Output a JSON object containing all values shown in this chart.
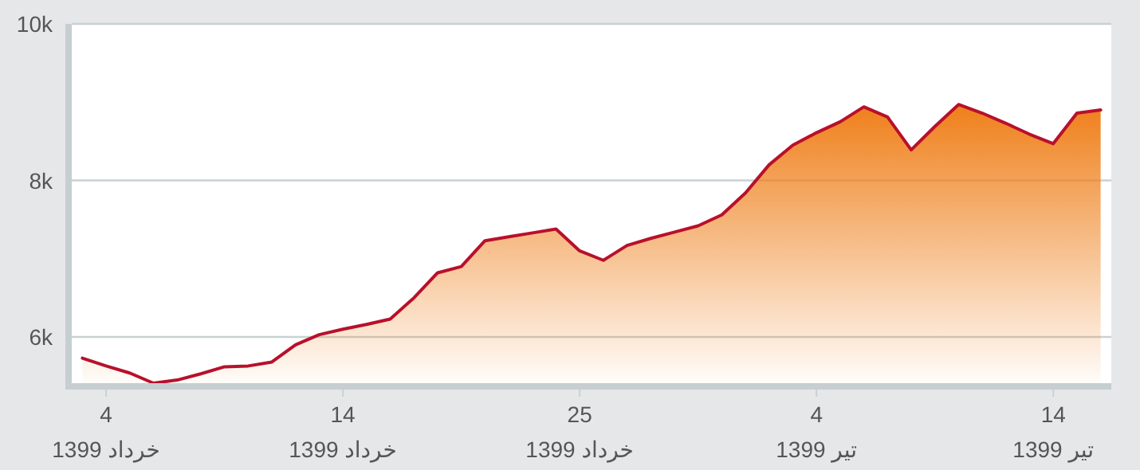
{
  "chart_data": {
    "type": "area",
    "categories": [
      null,
      "4\nخرداد 1399",
      null,
      null,
      null,
      null,
      null,
      null,
      null,
      null,
      null,
      "14\nخرداد 1399",
      null,
      null,
      null,
      null,
      null,
      null,
      null,
      null,
      null,
      "25\nخرداد 1399",
      null,
      null,
      null,
      null,
      null,
      null,
      null,
      null,
      null,
      "4\nتیر 1399",
      null,
      null,
      null,
      null,
      null,
      null,
      null,
      null,
      null,
      "14\nتیر 1399",
      null,
      null
    ],
    "series": [
      {
        "color": "#ef7f1a",
        "values": [
          5730,
          5630,
          5540,
          5410,
          5450,
          5530,
          5620,
          5630,
          5680,
          5900,
          6030,
          6100,
          6160,
          6230,
          6500,
          6820,
          6900,
          7230,
          7280,
          7330,
          7380,
          7100,
          6980,
          7170,
          7260,
          7340,
          7420,
          7560,
          7840,
          8200,
          8450,
          8610,
          8750,
          8940,
          8810,
          8390,
          8690,
          8970,
          8860,
          8730,
          8590,
          8470,
          8860,
          8900
        ]
      }
    ],
    "ylim": [
      5400,
      10000
    ],
    "yticks": [
      {
        "value": 6000,
        "label": "6k"
      },
      {
        "value": 8000,
        "label": "8k"
      },
      {
        "value": 10000,
        "label": "10k"
      }
    ],
    "grid": "y"
  }
}
